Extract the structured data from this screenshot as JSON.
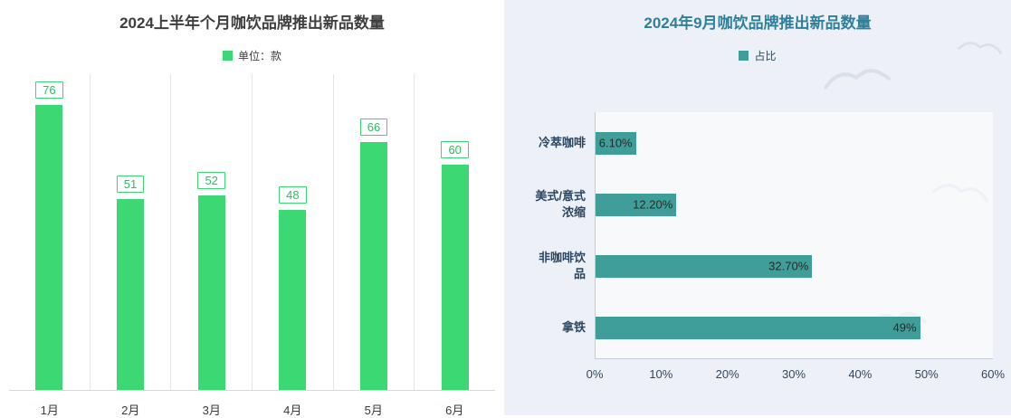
{
  "left_panel": {
    "title": "2024上半年个月咖饮品牌推出新品数量",
    "legend_label": "单位：款"
  },
  "right_panel": {
    "title": "2024年9月咖饮品牌推出新品数量",
    "legend_label": "占比"
  },
  "colors": {
    "left_bar": "#3BD873",
    "left_label_text": "#27C163",
    "right_bar": "#3F9E99",
    "right_title": "#2E7F9C",
    "right_background": "#EDF1F7"
  },
  "chart_data": [
    {
      "type": "bar",
      "orientation": "vertical",
      "title": "2024上半年个月咖饮品牌推出新品数量",
      "legend": [
        "单位：款"
      ],
      "categories": [
        "1月",
        "2月",
        "3月",
        "4月",
        "5月",
        "6月"
      ],
      "values": [
        76,
        51,
        52,
        48,
        66,
        60
      ],
      "ylim": [
        0,
        80
      ],
      "xlabel": "",
      "ylabel": ""
    },
    {
      "type": "bar",
      "orientation": "horizontal",
      "title": "2024年9月咖饮品牌推出新品数量",
      "legend": [
        "占比"
      ],
      "categories": [
        "冷萃咖啡",
        "美式/意式\n浓缩",
        "非咖啡饮\n品",
        "拿铁"
      ],
      "values": [
        6.1,
        12.2,
        32.7,
        49
      ],
      "data_labels": [
        "6.10%",
        "12.20%",
        "32.70%",
        "49%"
      ],
      "x_ticks": [
        "0%",
        "10%",
        "20%",
        "30%",
        "40%",
        "50%",
        "60%"
      ],
      "xlim": [
        0,
        60
      ]
    }
  ]
}
